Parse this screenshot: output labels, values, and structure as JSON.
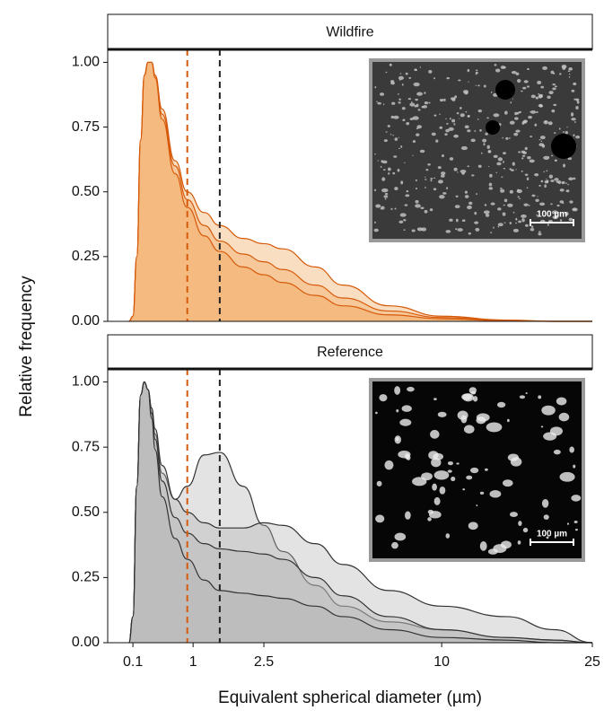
{
  "axis_labels": {
    "x": "Equivalent spherical diameter (µm)",
    "y": "Relative frequency"
  },
  "chart_data": [
    {
      "type": "area",
      "title": "Wildfire",
      "line_color": "#d65a0a",
      "fill_color": "#f0a050",
      "x": [
        0.05,
        0.1,
        0.15,
        0.2,
        0.25,
        0.3,
        0.35,
        0.4,
        0.5,
        0.7,
        0.9,
        1.2,
        1.5,
        2,
        2.5,
        3,
        4,
        5,
        7,
        10,
        15,
        20,
        25
      ],
      "series": [
        {
          "values": [
            0,
            0.02,
            0.25,
            0.7,
            0.95,
            1.0,
            1.0,
            0.95,
            0.82,
            0.62,
            0.5,
            0.42,
            0.37,
            0.32,
            0.3,
            0.28,
            0.21,
            0.14,
            0.06,
            0.02,
            0.005,
            0,
            0
          ]
        },
        {
          "values": [
            0,
            0.02,
            0.25,
            0.7,
            0.95,
            1.0,
            1.0,
            0.95,
            0.8,
            0.6,
            0.47,
            0.37,
            0.31,
            0.26,
            0.23,
            0.2,
            0.14,
            0.09,
            0.04,
            0.015,
            0.003,
            0,
            0
          ]
        },
        {
          "values": [
            0,
            0.02,
            0.25,
            0.7,
            0.95,
            1.0,
            1.0,
            0.94,
            0.78,
            0.57,
            0.44,
            0.33,
            0.27,
            0.21,
            0.18,
            0.15,
            0.1,
            0.06,
            0.025,
            0.01,
            0.002,
            0,
            0
          ]
        }
      ],
      "reference_lines": [
        {
          "value": 0.9,
          "color": "#d65a0a"
        },
        {
          "value": 1.5,
          "color": "#222222"
        }
      ],
      "xlim": [
        -0.2,
        25
      ],
      "ylim": [
        0,
        1.05
      ],
      "yticks": [
        {
          "value": 0,
          "label": "0.00"
        },
        {
          "value": 0.25,
          "label": "0.25"
        },
        {
          "value": 0.5,
          "label": "0.50"
        },
        {
          "value": 0.75,
          "label": "0.75"
        },
        {
          "value": 1,
          "label": "1.00"
        }
      ],
      "inset_scale_label": "100 µm"
    },
    {
      "type": "area",
      "title": "Reference",
      "line_color": "#333333",
      "fill_color": "#b0b0b0",
      "x": [
        0.05,
        0.1,
        0.15,
        0.2,
        0.25,
        0.3,
        0.35,
        0.4,
        0.5,
        0.7,
        0.9,
        1.2,
        1.5,
        2,
        2.5,
        3,
        4,
        5,
        7,
        10,
        15,
        20,
        25
      ],
      "series": [
        {
          "values": [
            0,
            0.1,
            0.6,
            0.95,
            1.0,
            0.97,
            0.9,
            0.8,
            0.65,
            0.55,
            0.6,
            0.72,
            0.73,
            0.6,
            0.45,
            0.35,
            0.22,
            0.14,
            0.08,
            0.05,
            0.02,
            0.01,
            0
          ]
        },
        {
          "values": [
            0,
            0.1,
            0.6,
            0.95,
            1.0,
            0.97,
            0.9,
            0.82,
            0.68,
            0.55,
            0.5,
            0.46,
            0.44,
            0.44,
            0.46,
            0.45,
            0.38,
            0.3,
            0.2,
            0.14,
            0.1,
            0.05,
            0
          ]
        },
        {
          "values": [
            0,
            0.1,
            0.6,
            0.95,
            1.0,
            0.97,
            0.88,
            0.78,
            0.62,
            0.48,
            0.42,
            0.38,
            0.36,
            0.35,
            0.34,
            0.32,
            0.25,
            0.18,
            0.1,
            0.05,
            0.02,
            0.01,
            0
          ]
        },
        {
          "values": [
            0,
            0.1,
            0.6,
            0.95,
            1.0,
            0.97,
            0.86,
            0.74,
            0.56,
            0.4,
            0.32,
            0.24,
            0.2,
            0.19,
            0.18,
            0.17,
            0.14,
            0.1,
            0.05,
            0.02,
            0.01,
            0,
            0
          ]
        }
      ],
      "reference_lines": [
        {
          "value": 0.9,
          "color": "#d65a0a"
        },
        {
          "value": 1.5,
          "color": "#222222"
        }
      ],
      "xlim": [
        -0.2,
        25
      ],
      "ylim": [
        0,
        1.05
      ],
      "yticks": [
        {
          "value": 0,
          "label": "0.00"
        },
        {
          "value": 0.25,
          "label": "0.25"
        },
        {
          "value": 0.5,
          "label": "0.50"
        },
        {
          "value": 0.75,
          "label": "0.75"
        },
        {
          "value": 1,
          "label": "1.00"
        }
      ],
      "xticks": [
        0.1,
        1,
        2.5,
        10,
        25
      ],
      "inset_scale_label": "100 µm"
    }
  ]
}
